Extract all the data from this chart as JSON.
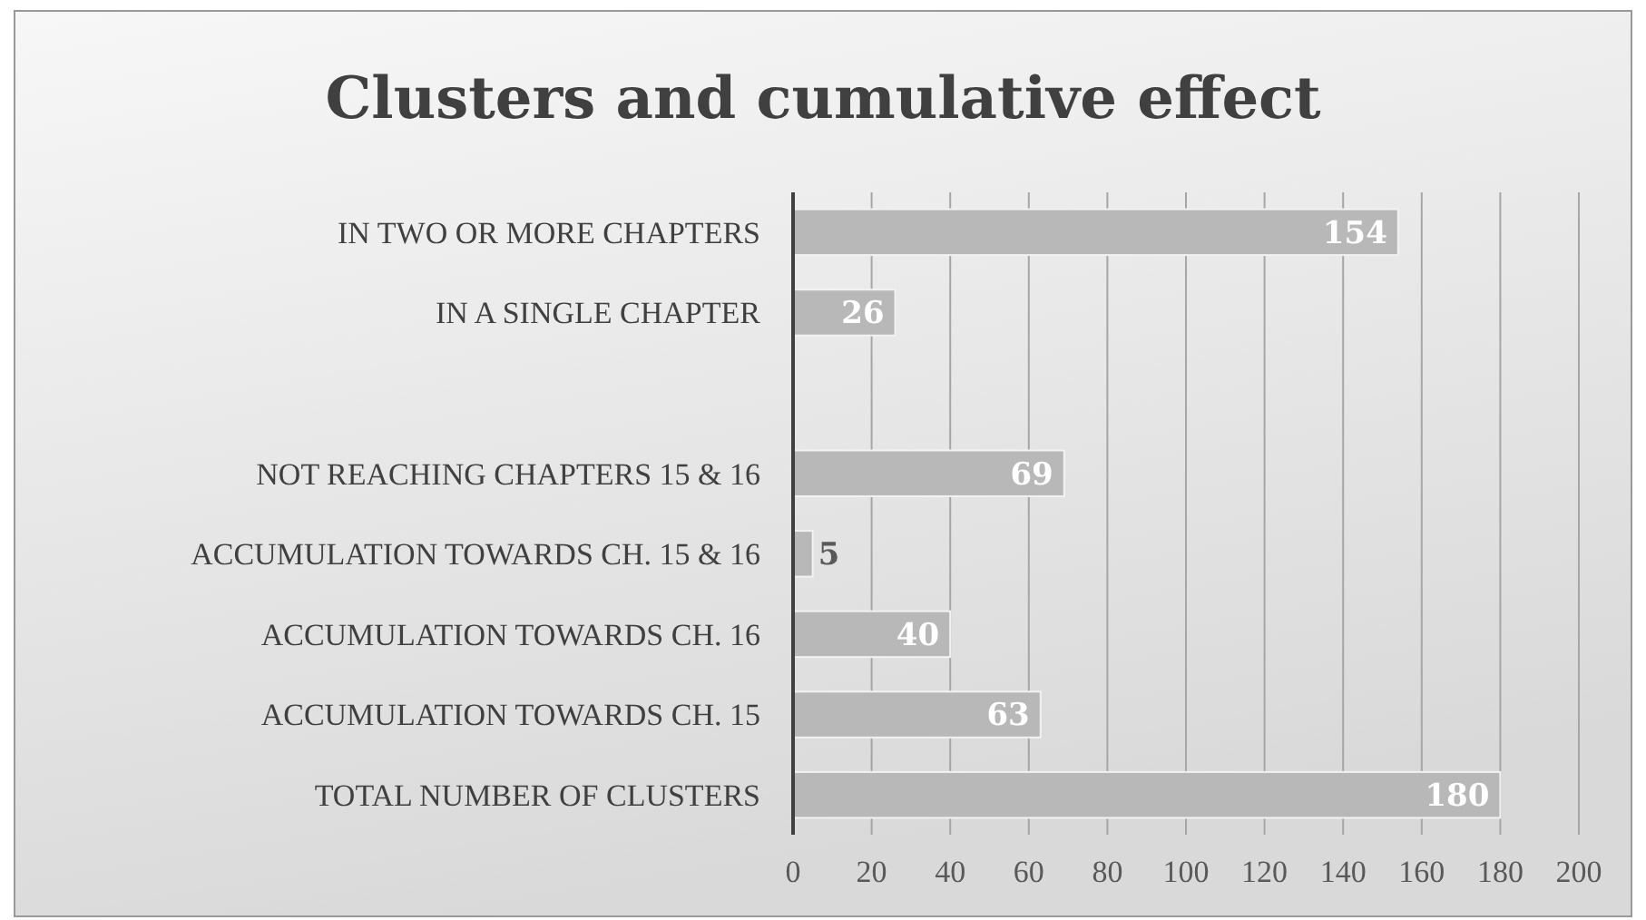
{
  "chart_data": {
    "type": "bar",
    "orientation": "horizontal",
    "title": "Clusters and cumulative effect",
    "categories": [
      "IN TWO OR MORE CHAPTERS",
      "IN A SINGLE CHAPTER",
      null,
      "NOT REACHING CHAPTERS 15 & 16",
      "ACCUMULATION TOWARDS CH. 15 & 16",
      "ACCUMULATION TOWARDS CH. 16",
      "ACCUMULATION TOWARDS CH. 15",
      "TOTAL NUMBER OF CLUSTERS"
    ],
    "values": [
      154,
      26,
      null,
      69,
      5,
      40,
      63,
      180
    ],
    "color": "#b8b8b8",
    "xlim": [
      0,
      200
    ],
    "xticks": [
      0,
      20,
      40,
      60,
      80,
      100,
      120,
      140,
      160,
      180,
      200
    ],
    "grid": "x",
    "data_labels": true
  }
}
